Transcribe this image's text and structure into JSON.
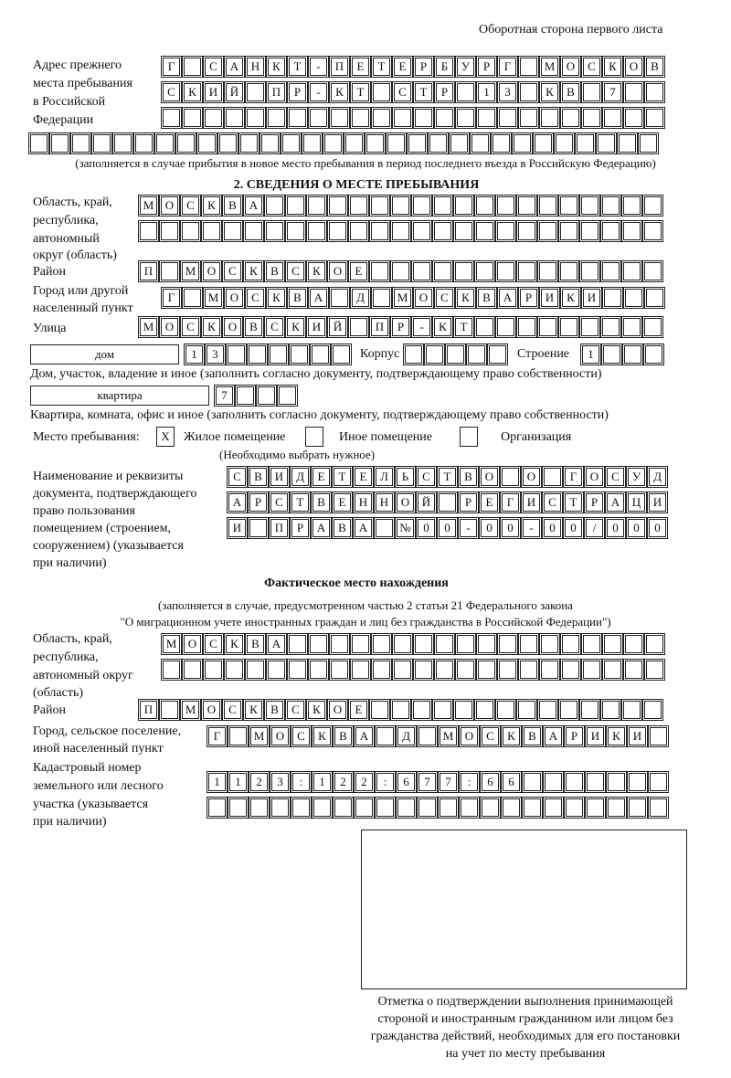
{
  "header": {
    "page_side": "Оборотная сторона первого листа"
  },
  "prev_address": {
    "label": "Адрес прежнего места пребывания в Российской Федерации",
    "label_lines": [
      "Адрес прежнего",
      "места пребывания",
      "в Российской",
      "Федерации"
    ],
    "rows": [
      [
        "Г",
        "",
        "С",
        "А",
        "Н",
        "К",
        "Т",
        "-",
        "П",
        "Е",
        "Т",
        "Е",
        "Р",
        "Б",
        "У",
        "Р",
        "Г",
        "",
        "М",
        "О",
        "С",
        "К",
        "О",
        "В"
      ],
      [
        "С",
        "К",
        "И",
        "Й",
        "",
        "П",
        "Р",
        "-",
        "К",
        "Т",
        "",
        "С",
        "Т",
        "Р",
        "",
        "1",
        "3",
        "",
        "К",
        "В",
        "",
        "7"
      ],
      [],
      []
    ],
    "note": "(заполняется в случае прибытия в новое место пребывания в период последнего въезда в Российскую Федерацию)"
  },
  "stay": {
    "title": "2. СВЕДЕНИЯ О МЕСТЕ ПРЕБЫВАНИЯ",
    "region_label": [
      "Область, край,",
      "республика,",
      "автономный",
      "округ (область)"
    ],
    "region_rows": [
      [
        "М",
        "О",
        "С",
        "К",
        "В",
        "А"
      ],
      []
    ],
    "district_label": "Район",
    "district": [
      "П",
      "",
      "М",
      "О",
      "С",
      "К",
      "В",
      "С",
      "К",
      "О",
      "Е"
    ],
    "city_label": [
      "Город или другой",
      "населенный пункт"
    ],
    "city": [
      "Г",
      "",
      "М",
      "О",
      "С",
      "К",
      "В",
      "А",
      "",
      "Д",
      "",
      "М",
      "О",
      "С",
      "К",
      "В",
      "А",
      "Р",
      "И",
      "К",
      "И"
    ],
    "street_label": "Улица",
    "street": [
      "М",
      "О",
      "С",
      "К",
      "О",
      "В",
      "С",
      "К",
      "И",
      "Й",
      "",
      "П",
      "Р",
      "-",
      "К",
      "Т"
    ],
    "house_type": "дом",
    "house": [
      "1",
      "3"
    ],
    "korpus_label": "Корпус",
    "korpus": [],
    "building_label": "Строение",
    "building": [
      "1"
    ],
    "house_note": "Дом, участок, владение и иное (заполнить согласно документу, подтверждающему право собственности)",
    "flat_type": "квартира",
    "flat": [
      "7"
    ],
    "flat_note": "Квартира, комната, офис и иное (заполнить согласно документу, подтверждающему право собственности)",
    "place_label": "Место пребывания:",
    "options": [
      {
        "label": "Жилое помещение",
        "mark": "X",
        "checked": true
      },
      {
        "label": "Иное помещение",
        "mark": "",
        "checked": false
      },
      {
        "label": "Организация",
        "mark": "",
        "checked": false
      }
    ],
    "options_note": "(Необходимо выбрать нужное)",
    "doc_label": [
      "Наименование и реквизиты",
      "документа, подтверждающего",
      "право пользования",
      "помещением (строением,",
      "сооружением) (указывается",
      "при наличии)"
    ],
    "doc_rows": [
      [
        "С",
        "В",
        "И",
        "Д",
        "Е",
        "Т",
        "Е",
        "Л",
        "Ь",
        "С",
        "Т",
        "В",
        "О",
        "",
        "О",
        "",
        "Г",
        "О",
        "С",
        "У",
        "Д"
      ],
      [
        "А",
        "Р",
        "С",
        "Т",
        "В",
        "Е",
        "Н",
        "Н",
        "О",
        "Й",
        "",
        "Р",
        "Е",
        "Г",
        "И",
        "С",
        "Т",
        "Р",
        "А",
        "Ц",
        "И"
      ],
      [
        "И",
        "",
        "П",
        "Р",
        "А",
        "В",
        "А",
        "",
        "№",
        "0",
        "0",
        "-",
        "0",
        "0",
        "-",
        "0",
        "0",
        "/",
        "0",
        "0",
        "0"
      ]
    ]
  },
  "actual": {
    "title": "Фактическое место нахождения",
    "note1": "(заполняется в случае, предусмотренном частью 2 статьи 21 Федерального закона",
    "note2": "\"О миграционном учете иностранных граждан и лиц без гражданства в Российской Федерации\")",
    "region_label": [
      "Область, край,",
      "республика,",
      "автономный округ",
      "(область)"
    ],
    "region_rows": [
      [
        "М",
        "О",
        "С",
        "К",
        "В",
        "А"
      ],
      []
    ],
    "district_label": "Район",
    "district": [
      "П",
      "",
      "М",
      "О",
      "С",
      "К",
      "В",
      "С",
      "К",
      "О",
      "Е"
    ],
    "city_label": [
      "Город, сельское поселение,",
      "иной населенный пункт"
    ],
    "city": [
      "Г",
      "",
      "М",
      "О",
      "С",
      "К",
      "В",
      "А",
      "",
      "Д",
      "",
      "М",
      "О",
      "С",
      "К",
      "В",
      "А",
      "Р",
      "И",
      "К",
      "И"
    ],
    "cadastral_label": [
      "Кадастровый номер",
      "земельного или лесного",
      "участка (указывается",
      "при наличии)"
    ],
    "cadastral_rows": [
      [
        "1",
        "1",
        "2",
        "3",
        ":",
        "1",
        "2",
        "2",
        ":",
        "6",
        "7",
        "7",
        ":",
        "6",
        "6"
      ],
      []
    ]
  },
  "stamp": {
    "caption_lines": [
      "Отметка о подтверждении выполнения принимающей",
      "стороной и иностранным гражданином или лицом без",
      "гражданства действий, необходимых для его постановки",
      "на учет по месту пребывания"
    ]
  }
}
